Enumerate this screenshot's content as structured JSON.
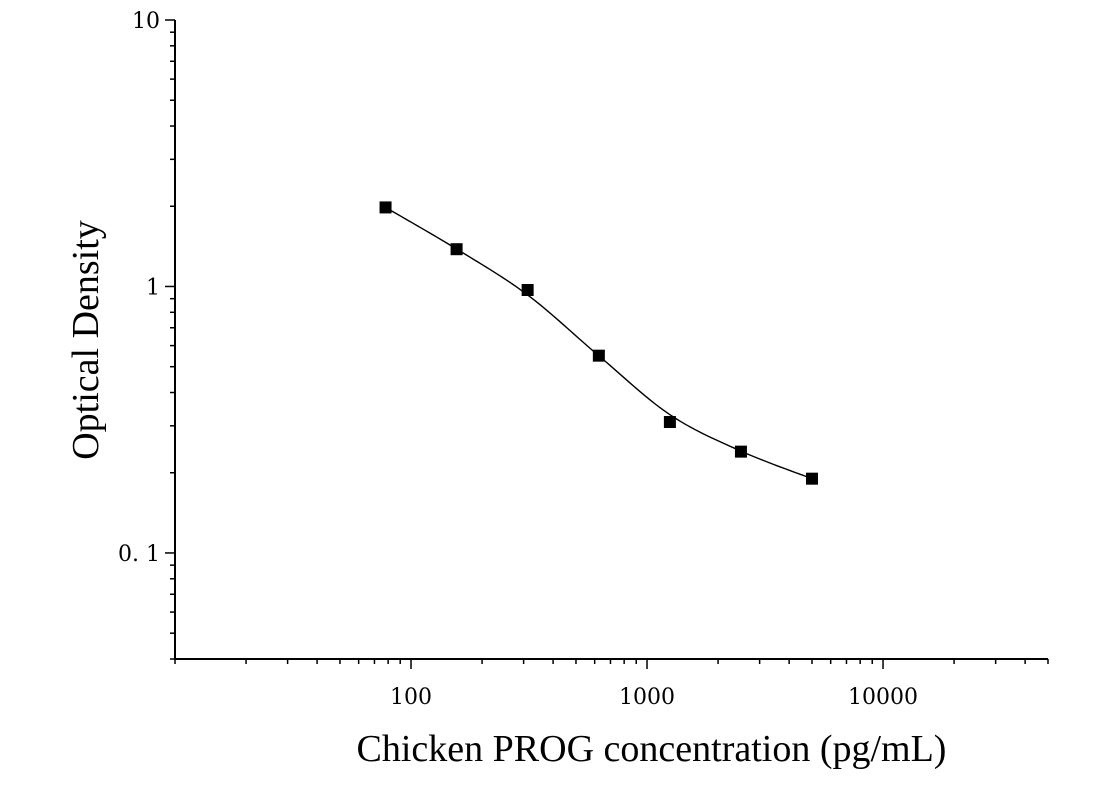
{
  "chart_data": {
    "type": "scatter",
    "xlabel": "Chicken PROG concentration (pg/mL)",
    "ylabel": "Optical Density",
    "xscale": "log",
    "yscale": "log",
    "xlim": [
      10,
      50000
    ],
    "ylim": [
      0.04,
      10
    ],
    "x_tick_labels": [
      "100",
      "1000",
      "10000"
    ],
    "x_tick_values": [
      100,
      1000,
      10000
    ],
    "y_tick_labels": [
      "0. 1",
      "1",
      "10"
    ],
    "y_tick_values": [
      0.1,
      1,
      10
    ],
    "grid": false,
    "legend": "none",
    "series": [
      {
        "x": [
          78,
          156,
          312,
          625,
          1250,
          2500,
          5000
        ],
        "y": [
          1.98,
          1.38,
          0.97,
          0.55,
          0.31,
          0.24,
          0.19
        ],
        "marker": "square",
        "color": "#000000"
      }
    ],
    "fit_curve": {
      "type": "4PL",
      "x_range": [
        78,
        5000
      ],
      "color": "#000000"
    }
  }
}
